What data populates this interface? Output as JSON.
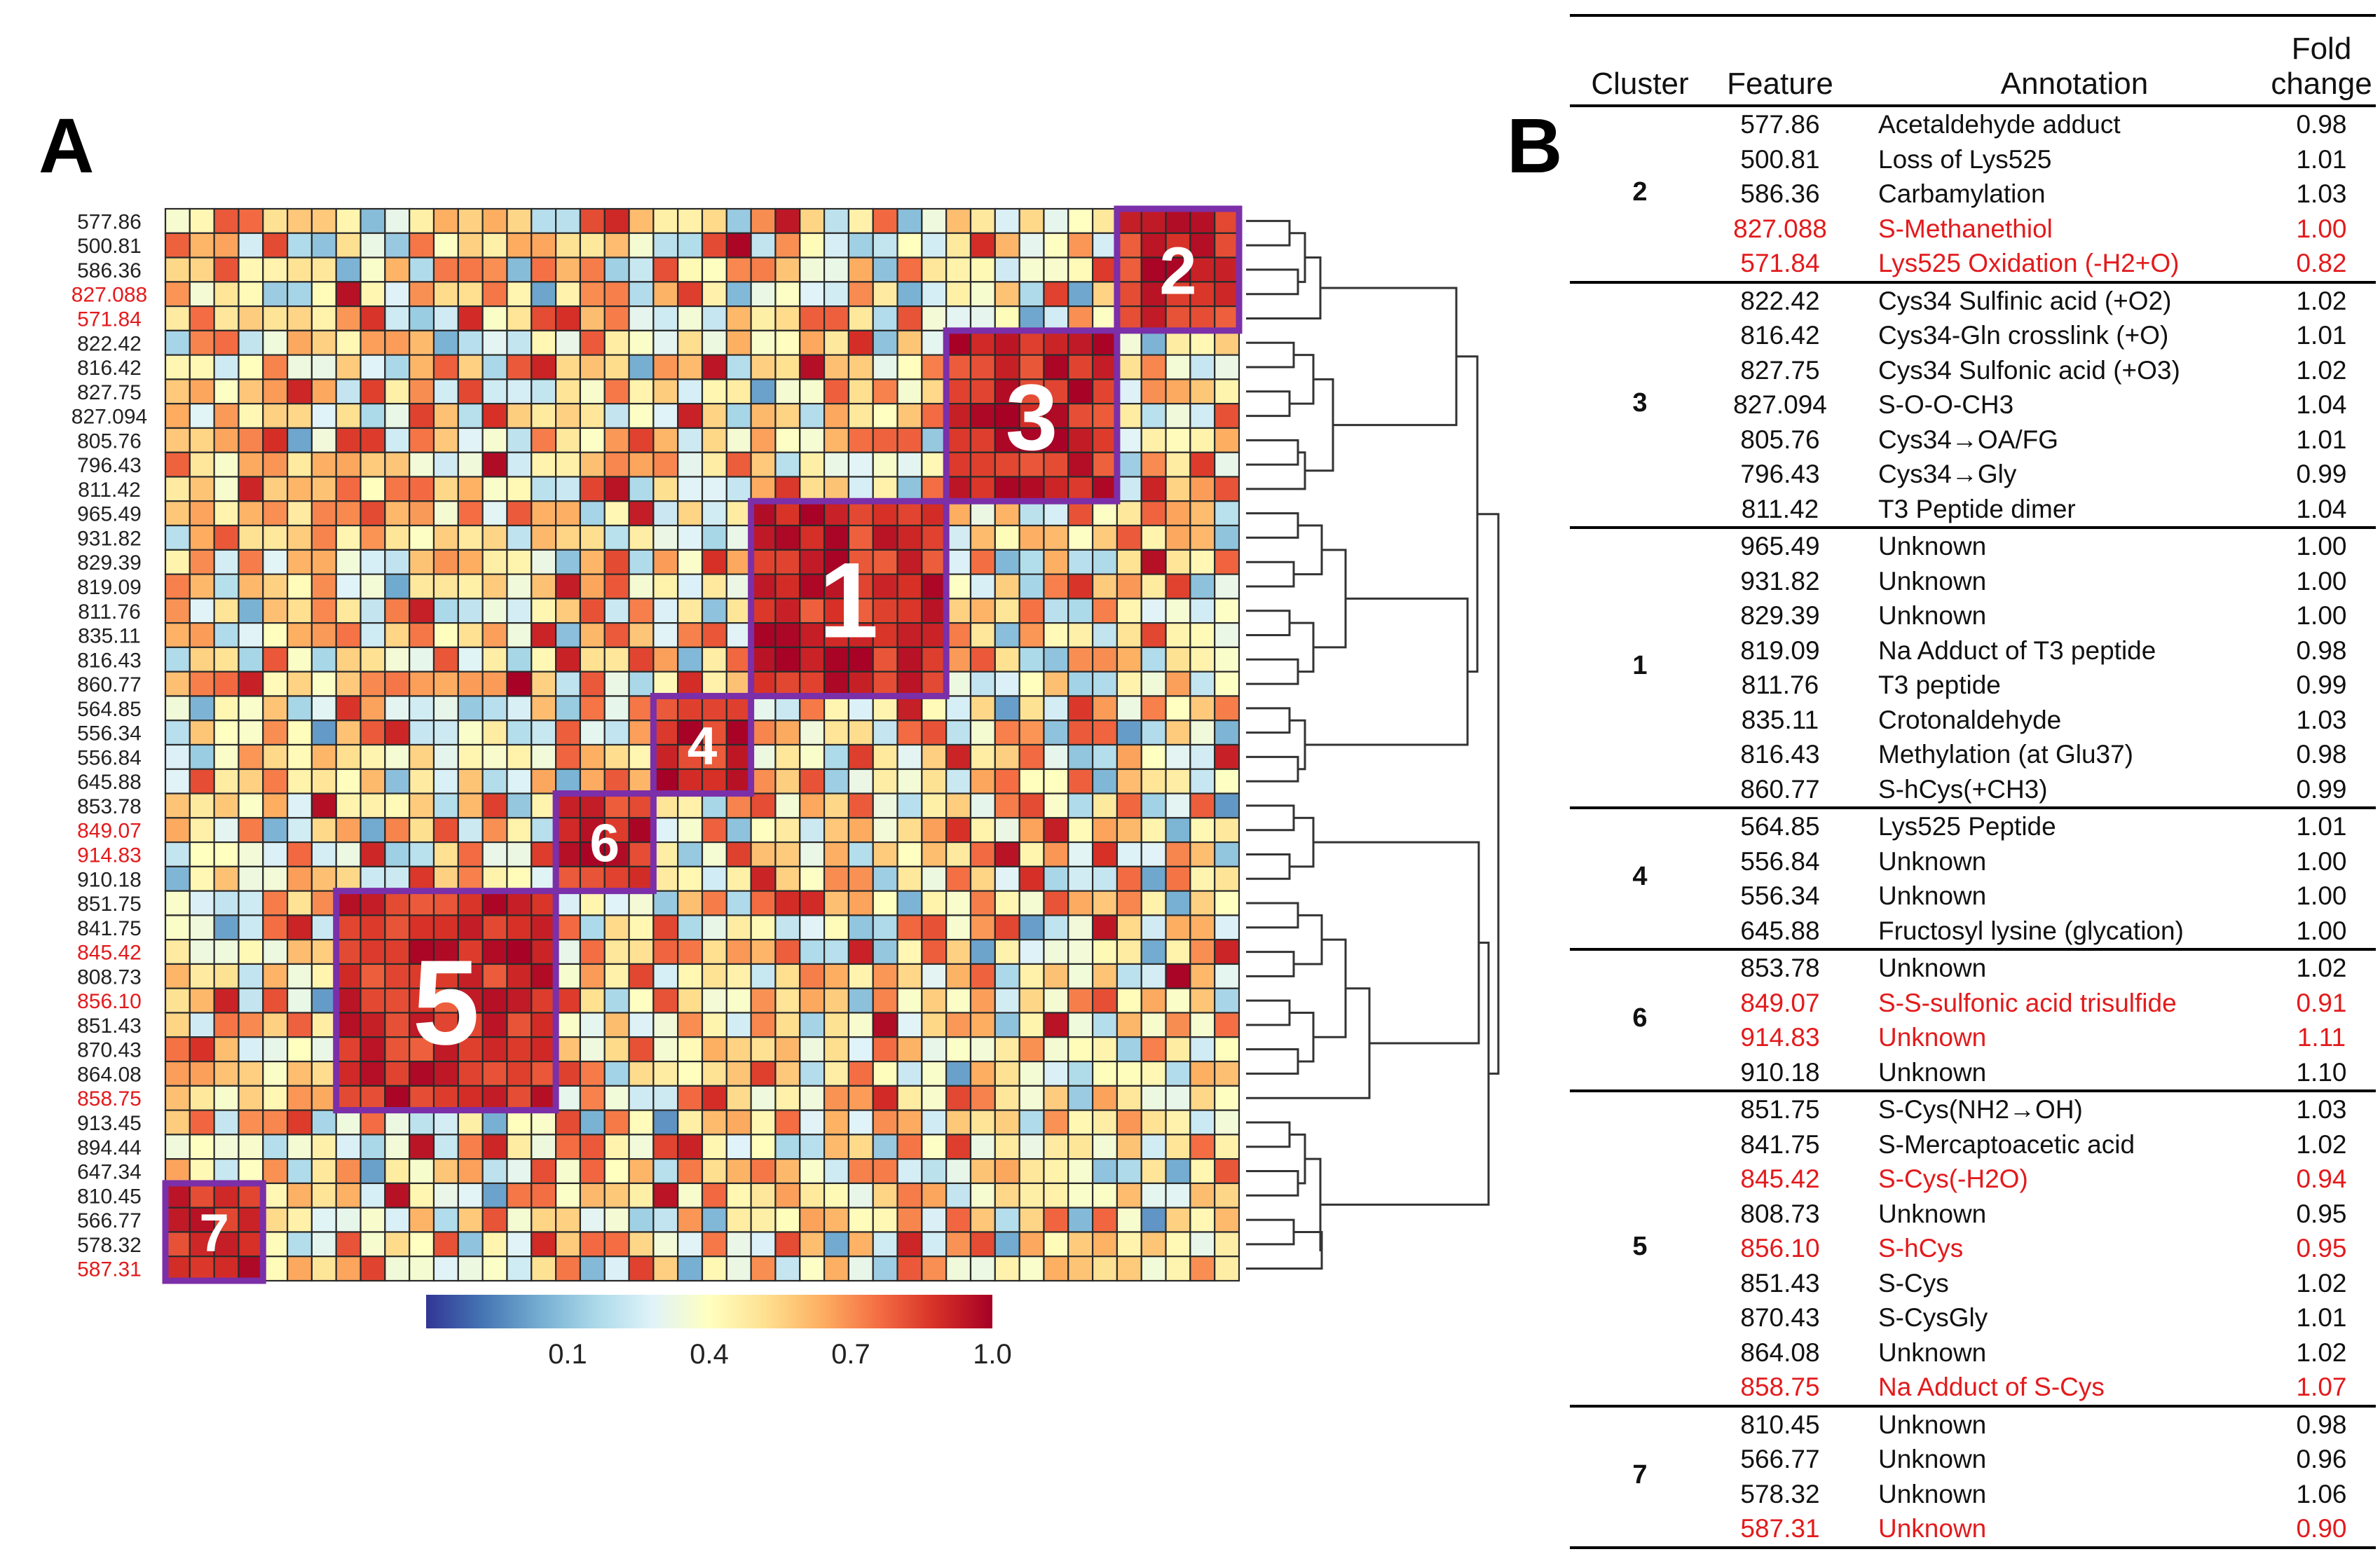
{
  "panel_a_label": "A",
  "panel_b_label": "B",
  "colors": {
    "red_label": "#e31a1c",
    "box": "#7b2fa8",
    "scale": [
      "#313695",
      "#4575b4",
      "#74add1",
      "#abd9e9",
      "#e0f3f8",
      "#ffffbf",
      "#fee090",
      "#fdae61",
      "#f46d43",
      "#d73027",
      "#a50026"
    ]
  },
  "chart_data": {
    "type": "heatmap",
    "title": "",
    "row_labels": [
      {
        "label": "577.86",
        "highlight": false
      },
      {
        "label": "500.81",
        "highlight": false
      },
      {
        "label": "586.36",
        "highlight": false
      },
      {
        "label": "827.088",
        "highlight": true
      },
      {
        "label": "571.84",
        "highlight": true
      },
      {
        "label": "822.42",
        "highlight": false
      },
      {
        "label": "816.42",
        "highlight": false
      },
      {
        "label": "827.75",
        "highlight": false
      },
      {
        "label": "827.094",
        "highlight": false
      },
      {
        "label": "805.76",
        "highlight": false
      },
      {
        "label": "796.43",
        "highlight": false
      },
      {
        "label": "811.42",
        "highlight": false
      },
      {
        "label": "965.49",
        "highlight": false
      },
      {
        "label": "931.82",
        "highlight": false
      },
      {
        "label": "829.39",
        "highlight": false
      },
      {
        "label": "819.09",
        "highlight": false
      },
      {
        "label": "811.76",
        "highlight": false
      },
      {
        "label": "835.11",
        "highlight": false
      },
      {
        "label": "816.43",
        "highlight": false
      },
      {
        "label": "860.77",
        "highlight": false
      },
      {
        "label": "564.85",
        "highlight": false
      },
      {
        "label": "556.34",
        "highlight": false
      },
      {
        "label": "556.84",
        "highlight": false
      },
      {
        "label": "645.88",
        "highlight": false
      },
      {
        "label": "853.78",
        "highlight": false
      },
      {
        "label": "849.07",
        "highlight": true
      },
      {
        "label": "914.83",
        "highlight": true
      },
      {
        "label": "910.18",
        "highlight": false
      },
      {
        "label": "851.75",
        "highlight": false
      },
      {
        "label": "841.75",
        "highlight": false
      },
      {
        "label": "845.42",
        "highlight": true
      },
      {
        "label": "808.73",
        "highlight": false
      },
      {
        "label": "856.10",
        "highlight": true
      },
      {
        "label": "851.43",
        "highlight": false
      },
      {
        "label": "870.43",
        "highlight": false
      },
      {
        "label": "864.08",
        "highlight": false
      },
      {
        "label": "858.75",
        "highlight": true
      },
      {
        "label": "913.45",
        "highlight": false
      },
      {
        "label": "894.44",
        "highlight": false
      },
      {
        "label": "647.34",
        "highlight": false
      },
      {
        "label": "810.45",
        "highlight": false
      },
      {
        "label": "566.77",
        "highlight": false
      },
      {
        "label": "578.32",
        "highlight": false
      },
      {
        "label": "587.31",
        "highlight": true
      }
    ],
    "clusters": [
      {
        "label": "2",
        "row_start": 0,
        "row_end": 4,
        "col_start": 39,
        "col_end": 43
      },
      {
        "label": "3",
        "row_start": 5,
        "row_end": 11,
        "col_start": 32,
        "col_end": 38
      },
      {
        "label": "1",
        "row_start": 12,
        "row_end": 19,
        "col_start": 24,
        "col_end": 31
      },
      {
        "label": "4",
        "row_start": 20,
        "row_end": 23,
        "col_start": 20,
        "col_end": 23
      },
      {
        "label": "6",
        "row_start": 24,
        "row_end": 27,
        "col_start": 16,
        "col_end": 19
      },
      {
        "label": "5",
        "row_start": 28,
        "row_end": 36,
        "col_start": 7,
        "col_end": 15
      },
      {
        "label": "7",
        "row_start": 40,
        "row_end": 43,
        "col_start": 0,
        "col_end": 3
      }
    ],
    "colorbar": {
      "range": [
        -0.2,
        1.0
      ],
      "ticks": [
        "0.1",
        "0.4",
        "0.7",
        "1.0"
      ],
      "tick_values": [
        0.1,
        0.4,
        0.7,
        1.0
      ]
    },
    "dendrogram_groups": [
      [
        0,
        4
      ],
      [
        5,
        11
      ],
      [
        12,
        19
      ],
      [
        20,
        23
      ],
      [
        24,
        27
      ],
      [
        28,
        36
      ],
      [
        37,
        43
      ]
    ]
  },
  "table": {
    "headers": {
      "cluster": "Cluster",
      "feature": "Feature",
      "annotation": "Annotation",
      "fold_line1": "Fold",
      "fold_line2": "change"
    },
    "groups": [
      {
        "cluster": "2",
        "rows": [
          {
            "feature": "577.86",
            "annotation": "Acetaldehyde adduct",
            "fold": "0.98",
            "red": false
          },
          {
            "feature": "500.81",
            "annotation": "Loss of Lys525",
            "fold": "1.01",
            "red": false
          },
          {
            "feature": "586.36",
            "annotation": "Carbamylation",
            "fold": "1.03",
            "red": false
          },
          {
            "feature": "827.088",
            "annotation": "S-Methanethiol",
            "fold": "1.00",
            "red": true
          },
          {
            "feature": "571.84",
            "annotation": "Lys525 Oxidation (-H2+O)",
            "fold": "0.82",
            "red": true
          }
        ]
      },
      {
        "cluster": "3",
        "rows": [
          {
            "feature": "822.42",
            "annotation": "Cys34 Sulfinic acid (+O2)",
            "fold": "1.02",
            "red": false
          },
          {
            "feature": "816.42",
            "annotation": "Cys34-Gln crosslink (+O)",
            "fold": "1.01",
            "red": false
          },
          {
            "feature": "827.75",
            "annotation": "Cys34 Sulfonic acid (+O3)",
            "fold": "1.02",
            "red": false
          },
          {
            "feature": "827.094",
            "annotation": "S-O-O-CH3",
            "fold": "1.04",
            "red": false
          },
          {
            "feature": "805.76",
            "annotation": "Cys34→OA/FG",
            "fold": "1.01",
            "red": false
          },
          {
            "feature": "796.43",
            "annotation": "Cys34→Gly",
            "fold": "0.99",
            "red": false
          },
          {
            "feature": "811.42",
            "annotation": "T3 Peptide dimer",
            "fold": "1.04",
            "red": false
          }
        ]
      },
      {
        "cluster": "1",
        "rows": [
          {
            "feature": "965.49",
            "annotation": "Unknown",
            "fold": "1.00",
            "red": false
          },
          {
            "feature": "931.82",
            "annotation": "Unknown",
            "fold": "1.00",
            "red": false
          },
          {
            "feature": "829.39",
            "annotation": "Unknown",
            "fold": "1.00",
            "red": false
          },
          {
            "feature": "819.09",
            "annotation": "Na Adduct of T3 peptide",
            "fold": "0.98",
            "red": false
          },
          {
            "feature": "811.76",
            "annotation": "T3 peptide",
            "fold": "0.99",
            "red": false
          },
          {
            "feature": "835.11",
            "annotation": "Crotonaldehyde",
            "fold": "1.03",
            "red": false
          },
          {
            "feature": "816.43",
            "annotation": "Methylation (at Glu37)",
            "fold": "0.98",
            "red": false
          },
          {
            "feature": "860.77",
            "annotation": "S-hCys(+CH3)",
            "fold": "0.99",
            "red": false
          }
        ]
      },
      {
        "cluster": "4",
        "rows": [
          {
            "feature": "564.85",
            "annotation": "Lys525 Peptide",
            "fold": "1.01",
            "red": false
          },
          {
            "feature": "556.84",
            "annotation": "Unknown",
            "fold": "1.00",
            "red": false
          },
          {
            "feature": "556.34",
            "annotation": "Unknown",
            "fold": "1.00",
            "red": false
          },
          {
            "feature": "645.88",
            "annotation": "Fructosyl lysine (glycation)",
            "fold": "1.00",
            "red": false
          }
        ]
      },
      {
        "cluster": "6",
        "rows": [
          {
            "feature": "853.78",
            "annotation": "Unknown",
            "fold": "1.02",
            "red": false
          },
          {
            "feature": "849.07",
            "annotation": "S-S-sulfonic acid trisulfide",
            "fold": "0.91",
            "red": true
          },
          {
            "feature": "914.83",
            "annotation": "Unknown",
            "fold": "1.11",
            "red": true
          },
          {
            "feature": "910.18",
            "annotation": "Unknown",
            "fold": "1.10",
            "red": false
          }
        ]
      },
      {
        "cluster": "5",
        "rows": [
          {
            "feature": "851.75",
            "annotation": "S-Cys(NH2→OH)",
            "fold": "1.03",
            "red": false
          },
          {
            "feature": "841.75",
            "annotation": "S-Mercaptoacetic acid",
            "fold": "1.02",
            "red": false
          },
          {
            "feature": "845.42",
            "annotation": "S-Cys(-H2O)",
            "fold": "0.94",
            "red": true
          },
          {
            "feature": "808.73",
            "annotation": "Unknown",
            "fold": "0.95",
            "red": false
          },
          {
            "feature": "856.10",
            "annotation": "S-hCys",
            "fold": "0.95",
            "red": true
          },
          {
            "feature": "851.43",
            "annotation": "S-Cys",
            "fold": "1.02",
            "red": false
          },
          {
            "feature": "870.43",
            "annotation": "S-CysGly",
            "fold": "1.01",
            "red": false
          },
          {
            "feature": "864.08",
            "annotation": "Unknown",
            "fold": "1.02",
            "red": false
          },
          {
            "feature": "858.75",
            "annotation": "Na Adduct of S-Cys",
            "fold": "1.07",
            "red": true
          }
        ]
      },
      {
        "cluster": "7",
        "rows": [
          {
            "feature": "810.45",
            "annotation": "Unknown",
            "fold": "0.98",
            "red": false
          },
          {
            "feature": "566.77",
            "annotation": "Unknown",
            "fold": "0.96",
            "red": false
          },
          {
            "feature": "578.32",
            "annotation": "Unknown",
            "fold": "1.06",
            "red": false
          },
          {
            "feature": "587.31",
            "annotation": "Unknown",
            "fold": "0.90",
            "red": true
          }
        ]
      }
    ]
  }
}
